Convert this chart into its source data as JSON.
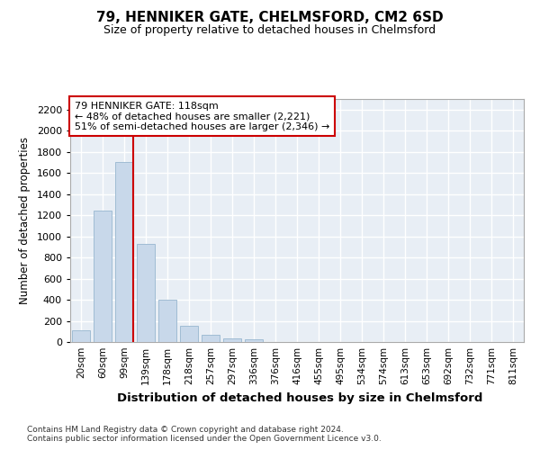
{
  "title": "79, HENNIKER GATE, CHELMSFORD, CM2 6SD",
  "subtitle": "Size of property relative to detached houses in Chelmsford",
  "xlabel": "Distribution of detached houses by size in Chelmsford",
  "ylabel": "Number of detached properties",
  "categories": [
    "20sqm",
    "60sqm",
    "99sqm",
    "139sqm",
    "178sqm",
    "218sqm",
    "257sqm",
    "297sqm",
    "336sqm",
    "376sqm",
    "416sqm",
    "455sqm",
    "495sqm",
    "534sqm",
    "574sqm",
    "613sqm",
    "653sqm",
    "692sqm",
    "732sqm",
    "771sqm",
    "811sqm"
  ],
  "values": [
    115,
    1245,
    1700,
    925,
    400,
    150,
    65,
    35,
    25,
    0,
    0,
    0,
    0,
    0,
    0,
    0,
    0,
    0,
    0,
    0,
    0
  ],
  "bar_color": "#c8d8ea",
  "bar_edge_color": "#a0bcd4",
  "vline_color": "#cc0000",
  "vline_x_index": 2,
  "annotation_text": "79 HENNIKER GATE: 118sqm\n← 48% of detached houses are smaller (2,221)\n51% of semi-detached houses are larger (2,346) →",
  "annotation_box_facecolor": "#ffffff",
  "annotation_box_edgecolor": "#cc0000",
  "ylim": [
    0,
    2300
  ],
  "yticks": [
    0,
    200,
    400,
    600,
    800,
    1000,
    1200,
    1400,
    1600,
    1800,
    2000,
    2200
  ],
  "footer_line1": "Contains HM Land Registry data © Crown copyright and database right 2024.",
  "footer_line2": "Contains public sector information licensed under the Open Government Licence v3.0.",
  "fig_facecolor": "#ffffff",
  "ax_facecolor": "#e8eef5",
  "grid_color": "#ffffff"
}
